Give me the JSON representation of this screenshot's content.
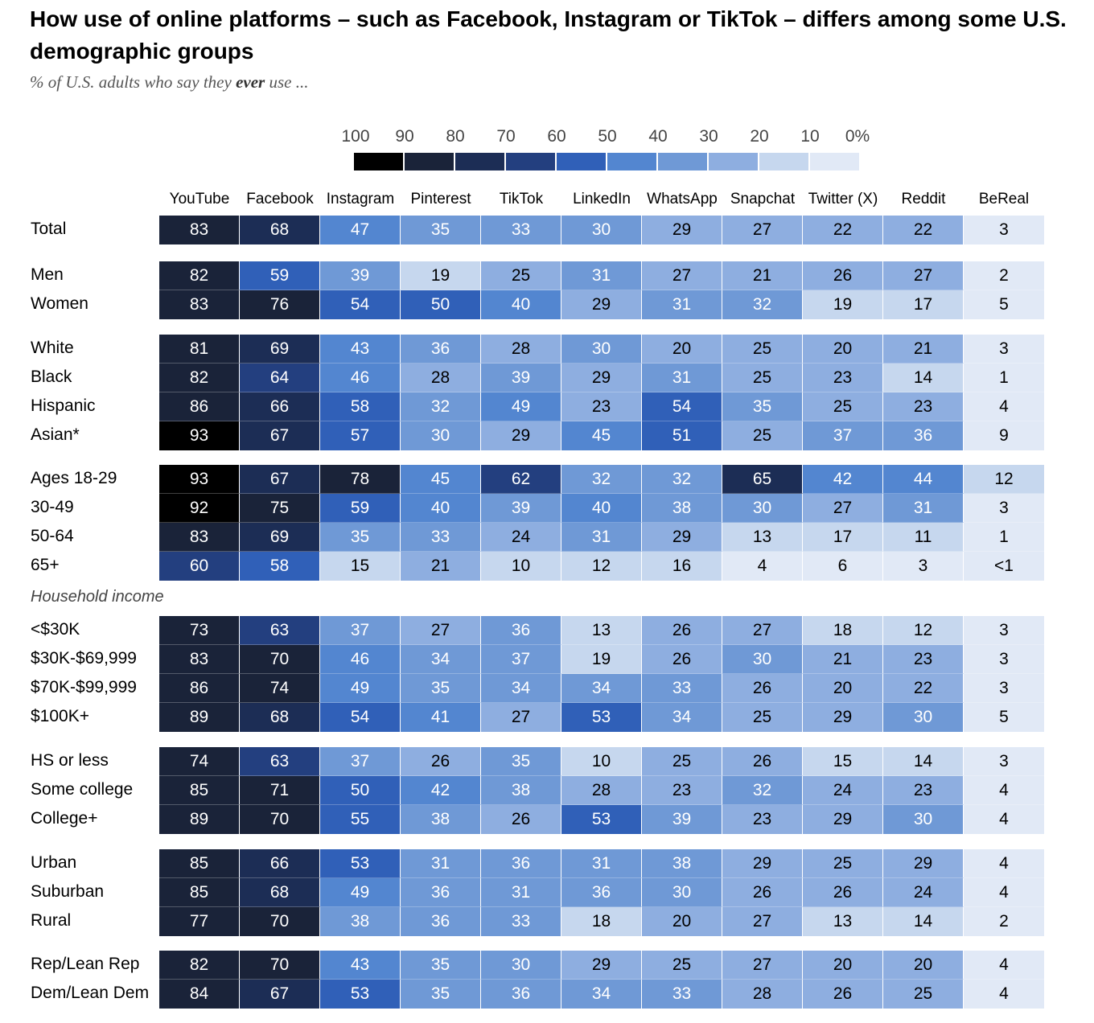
{
  "title": "How use of online platforms – such as Facebook, Instagram or TikTok – differs among some U.S. demographic groups",
  "subtitle": {
    "prefix": "% of U.S. adults who say they ",
    "emphasis": "ever",
    "suffix": " use ..."
  },
  "legend": {
    "labels": [
      "100",
      "90",
      "80",
      "70",
      "60",
      "50",
      "40",
      "30",
      "20",
      "10",
      "0%"
    ],
    "colors": [
      "#000000",
      "#1a2339",
      "#1c2d55",
      "#233f7f",
      "#3060b8",
      "#5386d0",
      "#6f99d6",
      "#8eaee0",
      "#c6d7ee",
      "#e1e9f6"
    ]
  },
  "chart_data": {
    "type": "heatmap",
    "columns": [
      "YouTube",
      "Facebook",
      "Instagram",
      "Pinterest",
      "TikTok",
      "LinkedIn",
      "WhatsApp",
      "Snapchat",
      "Twitter (X)",
      "Reddit",
      "BeReal"
    ],
    "groups": [
      {
        "label": "",
        "rows": [
          {
            "label": "Total",
            "values": [
              "83",
              "68",
              "47",
              "35",
              "33",
              "30",
              "29",
              "27",
              "22",
              "22",
              "3"
            ]
          }
        ]
      },
      {
        "label": "",
        "rows": [
          {
            "label": "Men",
            "values": [
              "82",
              "59",
              "39",
              "19",
              "25",
              "31",
              "27",
              "21",
              "26",
              "27",
              "2"
            ]
          },
          {
            "label": "Women",
            "values": [
              "83",
              "76",
              "54",
              "50",
              "40",
              "29",
              "31",
              "32",
              "19",
              "17",
              "5"
            ]
          }
        ]
      },
      {
        "label": "",
        "rows": [
          {
            "label": "White",
            "values": [
              "81",
              "69",
              "43",
              "36",
              "28",
              "30",
              "20",
              "25",
              "20",
              "21",
              "3"
            ]
          },
          {
            "label": "Black",
            "values": [
              "82",
              "64",
              "46",
              "28",
              "39",
              "29",
              "31",
              "25",
              "23",
              "14",
              "1"
            ]
          },
          {
            "label": "Hispanic",
            "values": [
              "86",
              "66",
              "58",
              "32",
              "49",
              "23",
              "54",
              "35",
              "25",
              "23",
              "4"
            ]
          },
          {
            "label": "Asian*",
            "values": [
              "93",
              "67",
              "57",
              "30",
              "29",
              "45",
              "51",
              "25",
              "37",
              "36",
              "9"
            ]
          }
        ]
      },
      {
        "label": "",
        "rows": [
          {
            "label": "Ages 18-29",
            "values": [
              "93",
              "67",
              "78",
              "45",
              "62",
              "32",
              "32",
              "65",
              "42",
              "44",
              "12"
            ]
          },
          {
            "label": "30-49",
            "values": [
              "92",
              "75",
              "59",
              "40",
              "39",
              "40",
              "38",
              "30",
              "27",
              "31",
              "3"
            ]
          },
          {
            "label": "50-64",
            "values": [
              "83",
              "69",
              "35",
              "33",
              "24",
              "31",
              "29",
              "13",
              "17",
              "11",
              "1"
            ]
          },
          {
            "label": "65+",
            "values": [
              "60",
              "58",
              "15",
              "21",
              "10",
              "12",
              "16",
              "4",
              "6",
              "3",
              "<1"
            ]
          }
        ]
      },
      {
        "label": "Household income",
        "rows": [
          {
            "label": "<$30K",
            "values": [
              "73",
              "63",
              "37",
              "27",
              "36",
              "13",
              "26",
              "27",
              "18",
              "12",
              "3"
            ]
          },
          {
            "label": "$30K-$69,999",
            "values": [
              "83",
              "70",
              "46",
              "34",
              "37",
              "19",
              "26",
              "30",
              "21",
              "23",
              "3"
            ]
          },
          {
            "label": "$70K-$99,999",
            "values": [
              "86",
              "74",
              "49",
              "35",
              "34",
              "34",
              "33",
              "26",
              "20",
              "22",
              "3"
            ]
          },
          {
            "label": "$100K+",
            "values": [
              "89",
              "68",
              "54",
              "41",
              "27",
              "53",
              "34",
              "25",
              "29",
              "30",
              "5"
            ]
          }
        ]
      },
      {
        "label": "",
        "rows": [
          {
            "label": "HS or less",
            "values": [
              "74",
              "63",
              "37",
              "26",
              "35",
              "10",
              "25",
              "26",
              "15",
              "14",
              "3"
            ]
          },
          {
            "label": "Some college",
            "values": [
              "85",
              "71",
              "50",
              "42",
              "38",
              "28",
              "23",
              "32",
              "24",
              "23",
              "4"
            ]
          },
          {
            "label": "College+",
            "values": [
              "89",
              "70",
              "55",
              "38",
              "26",
              "53",
              "39",
              "23",
              "29",
              "30",
              "4"
            ]
          }
        ]
      },
      {
        "label": "",
        "rows": [
          {
            "label": "Urban",
            "values": [
              "85",
              "66",
              "53",
              "31",
              "36",
              "31",
              "38",
              "29",
              "25",
              "29",
              "4"
            ]
          },
          {
            "label": "Suburban",
            "values": [
              "85",
              "68",
              "49",
              "36",
              "31",
              "36",
              "30",
              "26",
              "26",
              "24",
              "4"
            ]
          },
          {
            "label": "Rural",
            "values": [
              "77",
              "70",
              "38",
              "36",
              "33",
              "18",
              "20",
              "27",
              "13",
              "14",
              "2"
            ]
          }
        ]
      },
      {
        "label": "",
        "rows": [
          {
            "label": "Rep/Lean Rep",
            "values": [
              "82",
              "70",
              "43",
              "35",
              "30",
              "29",
              "25",
              "27",
              "20",
              "20",
              "4"
            ]
          },
          {
            "label": "Dem/Lean Dem",
            "values": [
              "84",
              "67",
              "53",
              "35",
              "36",
              "34",
              "33",
              "28",
              "26",
              "25",
              "4"
            ]
          }
        ]
      }
    ]
  }
}
